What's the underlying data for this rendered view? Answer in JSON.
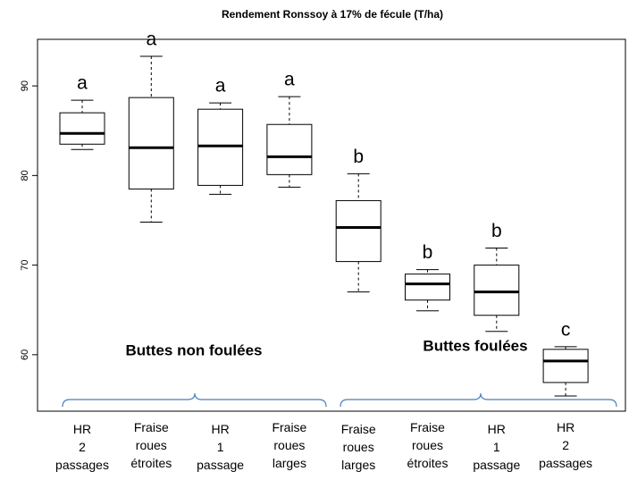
{
  "chart_data": {
    "type": "box",
    "title": "Rendement Ronssoy à 17% de fécule (T/ha)",
    "categories": [
      [
        "HR",
        "2",
        "passages"
      ],
      [
        "Fraise",
        "roues",
        "étroites"
      ],
      [
        "HR",
        "1",
        "passage"
      ],
      [
        "Fraise",
        "roues",
        "larges"
      ],
      [
        "Fraise",
        "roues",
        "larges"
      ],
      [
        "Fraise",
        "roues",
        "étroites"
      ],
      [
        "HR",
        "1",
        "passage"
      ],
      [
        "HR",
        "2",
        "passages"
      ]
    ],
    "whisker_high": [
      88.4,
      93.3,
      88.1,
      88.8,
      80.2,
      69.5,
      71.9,
      60.9
    ],
    "q3": [
      87.0,
      88.7,
      87.4,
      85.7,
      77.2,
      69.0,
      70.0,
      60.6
    ],
    "median": [
      84.7,
      83.1,
      83.3,
      82.1,
      74.2,
      67.9,
      67.0,
      59.3
    ],
    "q1": [
      83.5,
      78.5,
      78.9,
      80.1,
      70.4,
      66.1,
      64.4,
      56.9
    ],
    "whisker_low": [
      82.9,
      74.8,
      77.9,
      78.7,
      67.0,
      64.9,
      62.6,
      55.4
    ],
    "letters": [
      "a",
      "a",
      "a",
      "a",
      "b",
      "b",
      "b",
      "c"
    ],
    "group_labels": [
      "Buttes non foulées",
      "Buttes foulées"
    ],
    "ylim": [
      53.7,
      95.2
    ],
    "yticks": [
      60,
      70,
      80,
      90
    ],
    "color": "#000000",
    "brace_color": "#4a7ebb"
  }
}
